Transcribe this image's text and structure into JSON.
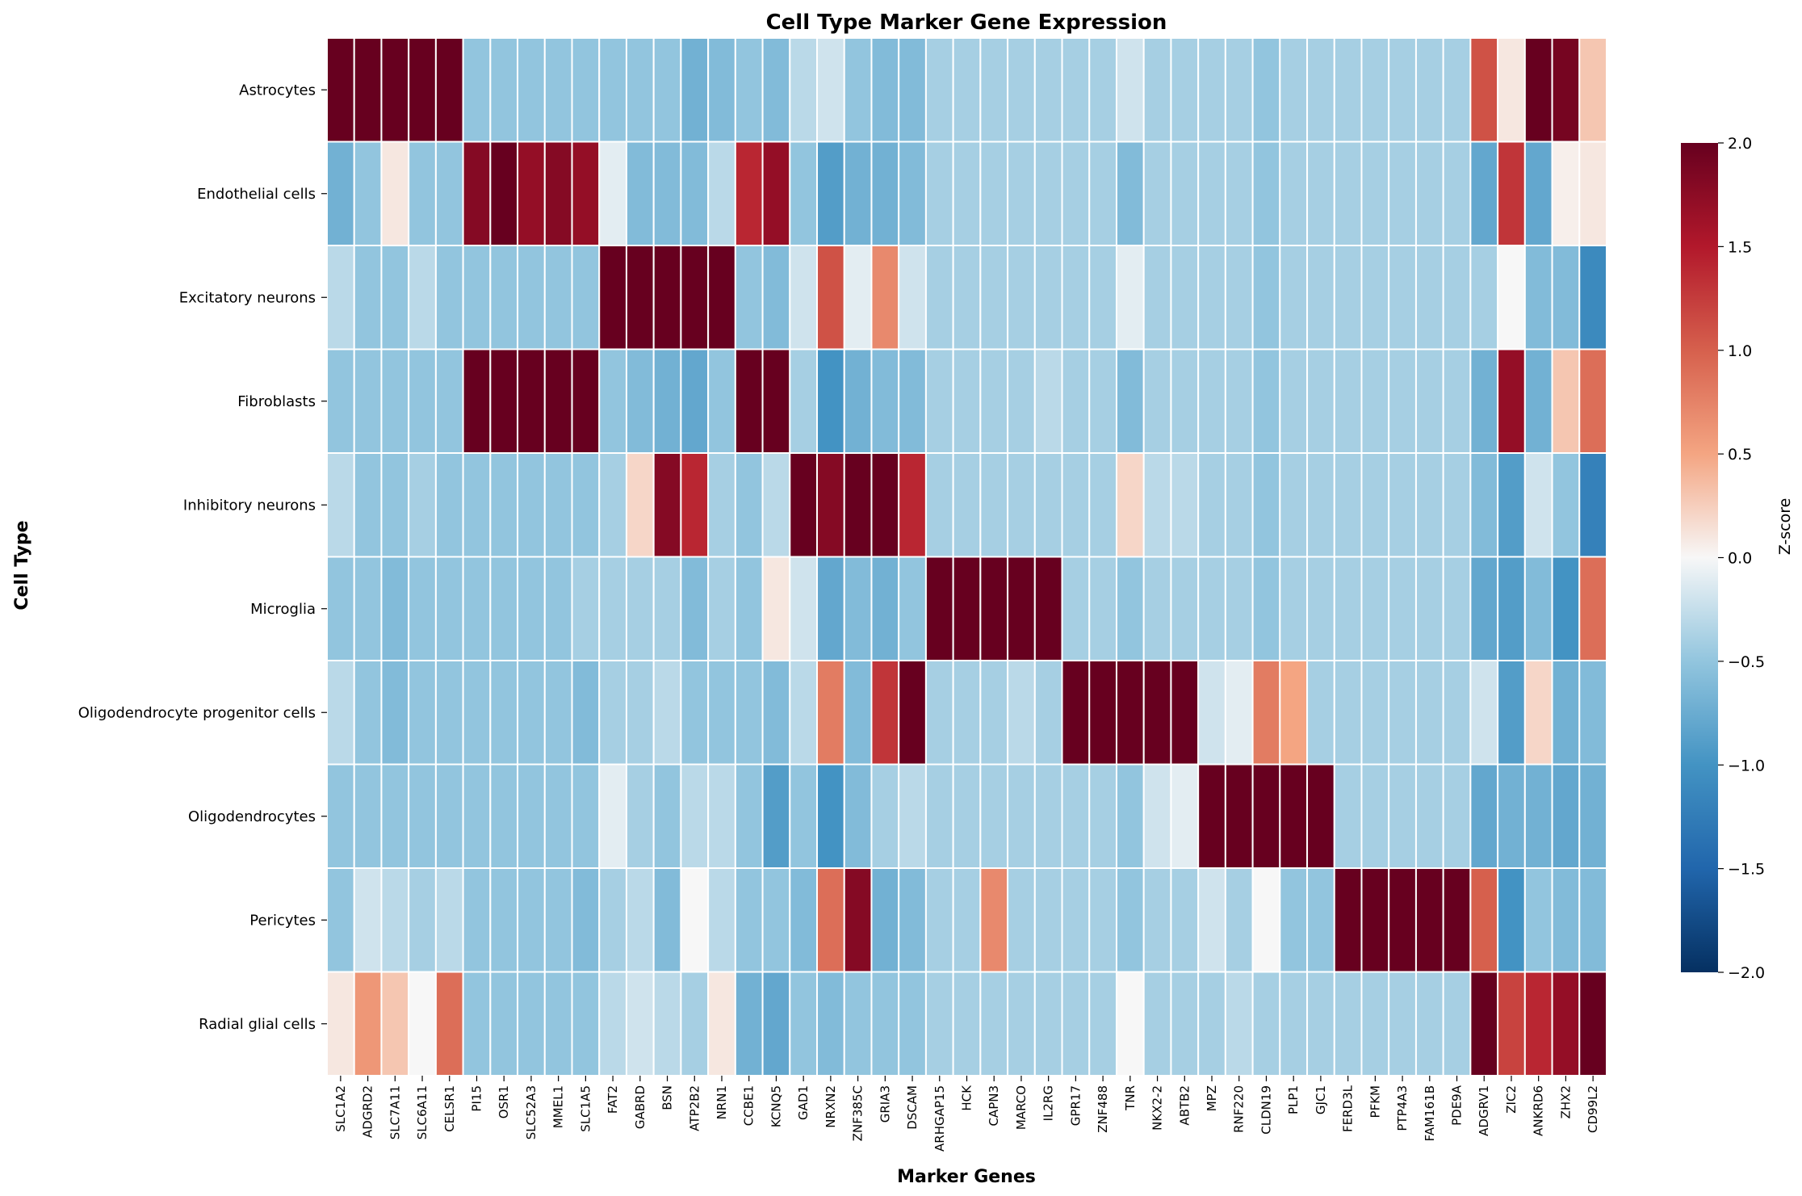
{
  "chart_data": {
    "type": "heatmap",
    "title": "Cell Type Marker Gene Expression",
    "xlabel": "Marker Genes",
    "ylabel": "Cell Type",
    "colorbar_label": "Z-score",
    "colorbar_ticks": [
      "−2.0",
      "−1.5",
      "−1.0",
      "−0.5",
      "0.0",
      "0.5",
      "1.0",
      "1.5",
      "2.0"
    ],
    "colormap": "RdBu_r",
    "vmin": -2.0,
    "vmax": 2.0,
    "x": [
      "SLC1A2",
      "ADGRD2",
      "SLC7A11",
      "SLC6A11",
      "CELSR1",
      "PI15",
      "OSR1",
      "SLC52A3",
      "MMEL1",
      "SLC1A5",
      "FAT2",
      "GABRD",
      "BSN",
      "ATP2B2",
      "NRN1",
      "CCBE1",
      "KCNQ5",
      "GAD1",
      "NRXN2",
      "ZNF385C",
      "GRIA3",
      "DSCAM",
      "ARHGAP15",
      "HCK",
      "CAPN3",
      "MARCO",
      "IL2RG",
      "GPR17",
      "ZNF488",
      "TNR",
      "NKX2-2",
      "ABTB2",
      "MPZ",
      "RNF220",
      "CLDN19",
      "PLP1",
      "GJC1",
      "FERD3L",
      "PFKM",
      "PTP4A3",
      "FAM161B",
      "PDE9A",
      "ADGRV1",
      "ZIC2",
      "ANKRD6",
      "ZHX2",
      "CD99L2"
    ],
    "y": [
      "Astrocytes",
      "Endothelial cells",
      "Excitatory neurons",
      "Fibroblasts",
      "Inhibitory neurons",
      "Microglia",
      "Oligodendrocyte progenitor cells",
      "Oligodendrocytes",
      "Pericytes",
      "Radial glial cells"
    ],
    "values": [
      [
        2.0,
        2.0,
        2.0,
        2.0,
        2.0,
        -0.5,
        -0.5,
        -0.5,
        -0.5,
        -0.5,
        -0.5,
        -0.5,
        -0.5,
        -0.7,
        -0.6,
        -0.5,
        -0.6,
        -0.3,
        -0.2,
        -0.5,
        -0.6,
        -0.6,
        -0.4,
        -0.4,
        -0.4,
        -0.4,
        -0.4,
        -0.4,
        -0.4,
        -0.2,
        -0.4,
        -0.4,
        -0.4,
        -0.4,
        -0.5,
        -0.4,
        -0.4,
        -0.4,
        -0.4,
        -0.4,
        -0.4,
        -0.4,
        1.1,
        0.1,
        2.0,
        1.9,
        0.3
      ],
      [
        -0.7,
        -0.5,
        0.1,
        -0.5,
        -0.5,
        1.8,
        2.0,
        1.7,
        1.8,
        1.7,
        -0.1,
        -0.6,
        -0.6,
        -0.6,
        -0.3,
        1.4,
        1.7,
        -0.5,
        -0.9,
        -0.7,
        -0.7,
        -0.6,
        -0.4,
        -0.4,
        -0.4,
        -0.4,
        -0.4,
        -0.4,
        -0.4,
        -0.6,
        -0.4,
        -0.4,
        -0.4,
        -0.4,
        -0.5,
        -0.4,
        -0.4,
        -0.4,
        -0.4,
        -0.4,
        -0.4,
        -0.4,
        -0.8,
        1.3,
        -0.8,
        0.05,
        0.1
      ],
      [
        -0.3,
        -0.5,
        -0.5,
        -0.3,
        -0.5,
        -0.5,
        -0.5,
        -0.5,
        -0.5,
        -0.5,
        2.0,
        2.0,
        2.0,
        2.0,
        2.0,
        -0.5,
        -0.6,
        -0.2,
        1.1,
        -0.1,
        0.7,
        -0.2,
        -0.4,
        -0.4,
        -0.4,
        -0.4,
        -0.4,
        -0.4,
        -0.4,
        -0.1,
        -0.4,
        -0.4,
        -0.4,
        -0.4,
        -0.5,
        -0.4,
        -0.4,
        -0.4,
        -0.4,
        -0.4,
        -0.4,
        -0.4,
        -0.4,
        0.0,
        -0.6,
        -0.6,
        -1.1
      ],
      [
        -0.5,
        -0.5,
        -0.5,
        -0.5,
        -0.5,
        2.0,
        2.0,
        2.0,
        2.0,
        2.0,
        -0.5,
        -0.6,
        -0.7,
        -0.8,
        -0.5,
        2.0,
        2.0,
        -0.4,
        -1.0,
        -0.7,
        -0.6,
        -0.6,
        -0.4,
        -0.4,
        -0.4,
        -0.4,
        -0.3,
        -0.4,
        -0.4,
        -0.6,
        -0.4,
        -0.4,
        -0.4,
        -0.4,
        -0.5,
        -0.4,
        -0.4,
        -0.4,
        -0.4,
        -0.4,
        -0.4,
        -0.4,
        -0.7,
        1.7,
        -0.7,
        0.3,
        0.9
      ],
      [
        -0.3,
        -0.5,
        -0.5,
        -0.4,
        -0.5,
        -0.5,
        -0.5,
        -0.5,
        -0.5,
        -0.5,
        -0.4,
        0.2,
        1.8,
        1.4,
        -0.4,
        -0.5,
        -0.3,
        2.0,
        1.8,
        2.0,
        2.0,
        1.4,
        -0.4,
        -0.4,
        -0.4,
        -0.4,
        -0.4,
        -0.4,
        -0.4,
        0.2,
        -0.3,
        -0.3,
        -0.4,
        -0.4,
        -0.5,
        -0.4,
        -0.4,
        -0.4,
        -0.4,
        -0.4,
        -0.4,
        -0.4,
        -0.6,
        -0.9,
        -0.2,
        -0.5,
        -1.2
      ],
      [
        -0.5,
        -0.5,
        -0.6,
        -0.5,
        -0.5,
        -0.5,
        -0.5,
        -0.5,
        -0.5,
        -0.4,
        -0.4,
        -0.4,
        -0.4,
        -0.6,
        -0.4,
        -0.5,
        0.1,
        -0.2,
        -0.8,
        -0.6,
        -0.7,
        -0.5,
        2.0,
        2.0,
        2.0,
        2.0,
        2.0,
        -0.4,
        -0.4,
        -0.5,
        -0.4,
        -0.4,
        -0.4,
        -0.4,
        -0.5,
        -0.4,
        -0.4,
        -0.4,
        -0.4,
        -0.4,
        -0.4,
        -0.4,
        -0.8,
        -0.9,
        -0.6,
        -1.0,
        0.9
      ],
      [
        -0.3,
        -0.5,
        -0.6,
        -0.5,
        -0.5,
        -0.5,
        -0.5,
        -0.5,
        -0.5,
        -0.6,
        -0.4,
        -0.4,
        -0.3,
        -0.5,
        -0.5,
        -0.5,
        -0.6,
        -0.3,
        0.8,
        -0.6,
        1.3,
        2.0,
        -0.4,
        -0.4,
        -0.4,
        -0.3,
        -0.4,
        2.0,
        2.0,
        2.0,
        2.0,
        2.0,
        -0.2,
        -0.1,
        0.8,
        0.5,
        -0.4,
        -0.4,
        -0.4,
        -0.4,
        -0.4,
        -0.4,
        -0.2,
        -0.9,
        0.2,
        -0.7,
        -0.6
      ],
      [
        -0.5,
        -0.5,
        -0.5,
        -0.5,
        -0.5,
        -0.5,
        -0.5,
        -0.5,
        -0.5,
        -0.5,
        -0.1,
        -0.4,
        -0.5,
        -0.3,
        -0.3,
        -0.5,
        -0.9,
        -0.5,
        -1.0,
        -0.6,
        -0.4,
        -0.3,
        -0.4,
        -0.4,
        -0.4,
        -0.4,
        -0.4,
        -0.4,
        -0.4,
        -0.5,
        -0.2,
        -0.1,
        2.0,
        2.0,
        2.0,
        2.0,
        2.0,
        -0.4,
        -0.4,
        -0.4,
        -0.4,
        -0.4,
        -0.8,
        -0.7,
        -0.7,
        -0.8,
        -0.7
      ],
      [
        -0.5,
        -0.2,
        -0.3,
        -0.4,
        -0.3,
        -0.5,
        -0.5,
        -0.5,
        -0.5,
        -0.6,
        -0.4,
        -0.3,
        -0.6,
        0.0,
        -0.3,
        -0.5,
        -0.5,
        -0.6,
        0.9,
        1.8,
        -0.7,
        -0.6,
        -0.4,
        -0.4,
        0.7,
        -0.4,
        -0.4,
        -0.4,
        -0.4,
        -0.5,
        -0.4,
        -0.4,
        -0.2,
        -0.4,
        0.0,
        -0.5,
        -0.5,
        2.0,
        2.0,
        2.0,
        2.0,
        2.0,
        1.0,
        -1.0,
        -0.5,
        -0.6,
        -0.6
      ],
      [
        0.1,
        0.6,
        0.3,
        0.0,
        0.9,
        -0.5,
        -0.5,
        -0.5,
        -0.5,
        -0.5,
        -0.3,
        -0.2,
        -0.3,
        -0.4,
        0.1,
        -0.7,
        -0.8,
        -0.5,
        -0.6,
        -0.5,
        -0.5,
        -0.5,
        -0.4,
        -0.4,
        -0.4,
        -0.4,
        -0.4,
        -0.4,
        -0.4,
        0.0,
        -0.4,
        -0.4,
        -0.4,
        -0.3,
        -0.4,
        -0.4,
        -0.4,
        -0.4,
        -0.4,
        -0.4,
        -0.4,
        -0.4,
        2.0,
        1.2,
        1.4,
        1.7,
        2.0
      ]
    ],
    "grid": true,
    "legend": "colorbar-right"
  }
}
